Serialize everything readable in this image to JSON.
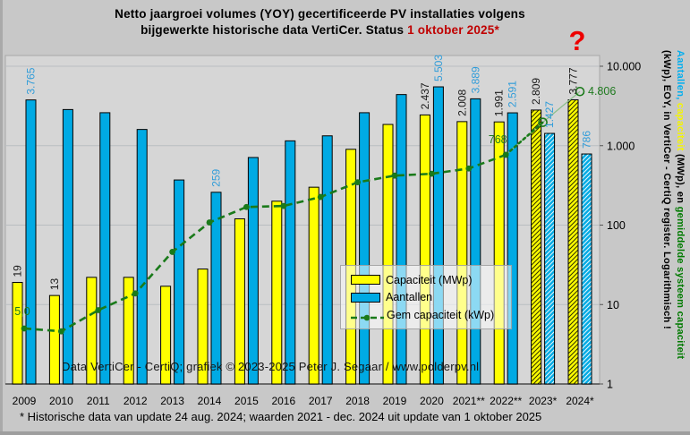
{
  "title": {
    "line1": "Netto jaargroei volumes (YOY) gecertificeerde PV installaties volgens",
    "line2_prefix": "bijgewerkte historische data VertiCer. Status ",
    "line2_highlight": "1 oktober 2025*"
  },
  "question_mark": "?",
  "watermark": "Data VertiCer - CertiQ; grafiek © 2023-2025 Peter J. Segaar / www.polderpv.nl",
  "footer_note": "* Historische data van update 24 aug. 2024; waarden 2021 - dec. 2024 uit update van 1 oktober 2025",
  "legend": {
    "items": [
      {
        "label": "Capaciteit (MWp)",
        "swatch": "yellow-rect"
      },
      {
        "label": "Aantallen",
        "swatch": "blue-rect"
      },
      {
        "label": "Gem capaciteit (kWp)",
        "swatch": "green-dash-line"
      }
    ]
  },
  "right_axis": {
    "ticks": [
      "10.000",
      "1.000",
      "100",
      "10",
      "1"
    ],
    "title_line1_parts": [
      {
        "text": "Aantallen,",
        "color": "#00aeef"
      },
      {
        "text": " capaciteit",
        "color": "#f5f500"
      },
      {
        "text": " (MWp), en ",
        "color": "#000000"
      },
      {
        "text": "gemiddelde systeem capaciteit",
        "color": "#007a00"
      }
    ],
    "title_line2_parts": [
      {
        "text": "(kWp), EOY, in VertiCer - CertiQ register. Logarithmisch !",
        "color": "#000000"
      }
    ]
  },
  "colors": {
    "bar_yellow": "#ffff00",
    "bar_blue": "#00aae4",
    "label_blue": "#2f9cd9",
    "label_black": "#1a1a1a",
    "line_green": "#1a7a1a",
    "line_green_light": "#8cbf8c",
    "label_green": "#1f7a1f",
    "highlight_red": "#c00000"
  },
  "chart_data": {
    "type": "bar",
    "title": "Netto jaargroei volumes (YOY) gecertificeerde PV installaties volgens bijgewerkte historische data VertiCer. Status 1 oktober 2025*",
    "y_scale": "log",
    "ylim": [
      1,
      10000
    ],
    "y_ticks": [
      "10.000",
      "1.000",
      "100",
      "10",
      "1"
    ],
    "grid": true,
    "legend_position": "center",
    "categories": [
      "2009",
      "2010",
      "2011",
      "2012",
      "2013",
      "2014",
      "2015",
      "2016",
      "2017",
      "2018",
      "2019",
      "2020",
      "2021**",
      "2022**",
      "2023*",
      "2024*"
    ],
    "series": [
      {
        "name": "Capaciteit (MWp)",
        "type": "bar",
        "color": "#ffff00",
        "values": [
          19,
          13,
          22,
          22,
          17,
          28,
          120,
          200,
          300,
          900,
          1850,
          2437,
          2008,
          1991,
          2809,
          3777
        ],
        "data_labels": [
          "19",
          "13",
          null,
          null,
          null,
          null,
          null,
          null,
          null,
          null,
          null,
          "2.437",
          "2.008",
          "1.991",
          "2.809",
          "3.777"
        ],
        "hatched_from_index": 14
      },
      {
        "name": "Aantallen",
        "type": "bar",
        "color": "#00aae4",
        "values": [
          3765,
          2850,
          2600,
          1600,
          370,
          259,
          710,
          1150,
          1330,
          2600,
          4400,
          5503,
          3889,
          2591,
          1427,
          786
        ],
        "data_labels": [
          "3.765",
          null,
          null,
          null,
          null,
          "259",
          null,
          null,
          null,
          null,
          null,
          "5.503",
          "3.889",
          "2.591",
          "1.427",
          "786"
        ],
        "hatched_from_index": 14
      },
      {
        "name": "Gem capaciteit (kWp)",
        "type": "line",
        "style": "dashed",
        "color": "#1a7a1a",
        "values": [
          5.0,
          4.6,
          8.5,
          13.8,
          46,
          108,
          169,
          174,
          226,
          346,
          420,
          443,
          516,
          768,
          1968,
          4806
        ],
        "data_labels": [
          "5,0",
          null,
          null,
          null,
          null,
          null,
          null,
          null,
          null,
          null,
          null,
          null,
          null,
          "768",
          null,
          "4.806"
        ],
        "open_markers_from_index": 14
      }
    ]
  }
}
